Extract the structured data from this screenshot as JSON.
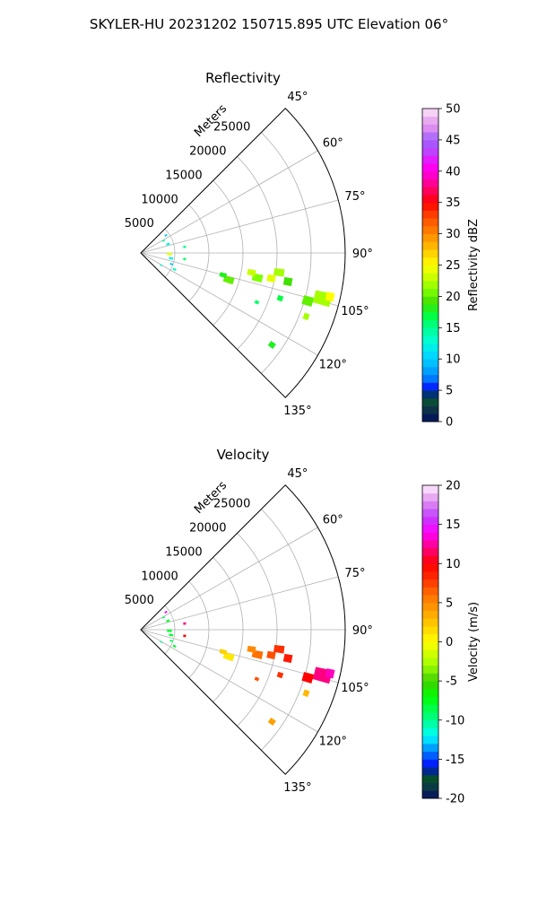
{
  "figure": {
    "suptitle": "SKYLER-HU  20231202  150715.895 UTC Elevation 06°"
  },
  "chart_data": [
    {
      "type": "heatmap",
      "subtype": "polar-sector-ppi",
      "title": "Reflectivity",
      "radial_label": "Meters",
      "radial_ticks": [
        "5000",
        "10000",
        "15000",
        "20000",
        "25000"
      ],
      "radial_tick_values": [
        5000,
        10000,
        15000,
        20000,
        25000
      ],
      "rmax": 30000,
      "angle_ticks": [
        "45°",
        "60°",
        "75°",
        "90°",
        "105°",
        "120°",
        "135°"
      ],
      "angle_tick_values": [
        45,
        60,
        75,
        90,
        105,
        120,
        135
      ],
      "theta_range": [
        45,
        135
      ],
      "grid": true,
      "colorbar": {
        "label": "Reflectivity dBZ",
        "ticks": [
          "0",
          "5",
          "10",
          "15",
          "20",
          "25",
          "30",
          "35",
          "40",
          "45",
          "50"
        ],
        "range": [
          0,
          50
        ],
        "stops": [
          [
            0,
            "#001060"
          ],
          [
            1.5,
            "#0d2a4d"
          ],
          [
            3,
            "#0b4a3a"
          ],
          [
            4,
            "#005020"
          ],
          [
            5,
            "#0000ff"
          ],
          [
            7,
            "#0080ff"
          ],
          [
            9,
            "#00b8ff"
          ],
          [
            11,
            "#00e0ff"
          ],
          [
            13,
            "#00ffd0"
          ],
          [
            15,
            "#00ff90"
          ],
          [
            17,
            "#00ff40"
          ],
          [
            19,
            "#40e000"
          ],
          [
            21,
            "#80ff00"
          ],
          [
            23,
            "#c8ff00"
          ],
          [
            25,
            "#ffff00"
          ],
          [
            27,
            "#ffd000"
          ],
          [
            29,
            "#ffa000"
          ],
          [
            31,
            "#ff7000"
          ],
          [
            33,
            "#ff4000"
          ],
          [
            35,
            "#ff0000"
          ],
          [
            37,
            "#ff0060"
          ],
          [
            39,
            "#ff00c0"
          ],
          [
            41,
            "#ff00ff"
          ],
          [
            43,
            "#c040ff"
          ],
          [
            45,
            "#a060ff"
          ],
          [
            47,
            "#e090f0"
          ],
          [
            49,
            "#f0c0f0"
          ],
          [
            50,
            "#fff0ff"
          ]
        ]
      },
      "echoes": [
        {
          "r": 17500,
          "theta": 102,
          "dr": 1500,
          "dtheta": 3.5,
          "value": 21
        },
        {
          "r": 16500,
          "theta": 100,
          "dr": 1200,
          "dtheta": 3,
          "value": 23
        },
        {
          "r": 20500,
          "theta": 98,
          "dr": 1500,
          "dtheta": 3,
          "value": 22
        },
        {
          "r": 19500,
          "theta": 101,
          "dr": 1200,
          "dtheta": 3,
          "value": 24
        },
        {
          "r": 22000,
          "theta": 101,
          "dr": 1200,
          "dtheta": 3,
          "value": 19
        },
        {
          "r": 13500,
          "theta": 107,
          "dr": 1500,
          "dtheta": 4,
          "value": 20
        },
        {
          "r": 12500,
          "theta": 105,
          "dr": 1000,
          "dtheta": 3,
          "value": 18
        },
        {
          "r": 27500,
          "theta": 104,
          "dr": 2500,
          "dtheta": 4,
          "value": 22
        },
        {
          "r": 28500,
          "theta": 103,
          "dr": 1200,
          "dtheta": 2.5,
          "value": 25
        },
        {
          "r": 25500,
          "theta": 106,
          "dr": 1500,
          "dtheta": 3,
          "value": 20
        },
        {
          "r": 21500,
          "theta": 108,
          "dr": 800,
          "dtheta": 2,
          "value": 17
        },
        {
          "r": 18500,
          "theta": 113,
          "dr": 600,
          "dtheta": 1.5,
          "value": 16
        },
        {
          "r": 26000,
          "theta": 111,
          "dr": 800,
          "dtheta": 2,
          "value": 22
        },
        {
          "r": 23500,
          "theta": 125,
          "dr": 900,
          "dtheta": 2,
          "value": 18
        },
        {
          "r": 4200,
          "theta": 92,
          "dr": 700,
          "dtheta": 5,
          "value": 24
        },
        {
          "r": 4200,
          "theta": 72,
          "dr": 500,
          "dtheta": 4,
          "value": 12
        },
        {
          "r": 3800,
          "theta": 62,
          "dr": 400,
          "dtheta": 3,
          "value": 14
        },
        {
          "r": 4500,
          "theta": 55,
          "dr": 400,
          "dtheta": 3,
          "value": 10
        },
        {
          "r": 4500,
          "theta": 100,
          "dr": 600,
          "dtheta": 4,
          "value": 12
        },
        {
          "r": 4800,
          "theta": 110,
          "dr": 500,
          "dtheta": 3,
          "value": 10
        },
        {
          "r": 5500,
          "theta": 116,
          "dr": 500,
          "dtheta": 3,
          "value": 14
        },
        {
          "r": 3500,
          "theta": 121,
          "dr": 400,
          "dtheta": 3,
          "value": 12
        },
        {
          "r": 6500,
          "theta": 82,
          "dr": 400,
          "dtheta": 3,
          "value": 15
        },
        {
          "r": 6500,
          "theta": 98,
          "dr": 400,
          "dtheta": 3,
          "value": 16
        }
      ]
    },
    {
      "type": "heatmap",
      "subtype": "polar-sector-ppi",
      "title": "Velocity",
      "radial_label": "Meters",
      "radial_ticks": [
        "5000",
        "10000",
        "15000",
        "20000",
        "25000"
      ],
      "radial_tick_values": [
        5000,
        10000,
        15000,
        20000,
        25000
      ],
      "rmax": 30000,
      "angle_ticks": [
        "45°",
        "60°",
        "75°",
        "90°",
        "105°",
        "120°",
        "135°"
      ],
      "angle_tick_values": [
        45,
        60,
        75,
        90,
        105,
        120,
        135
      ],
      "theta_range": [
        45,
        135
      ],
      "grid": true,
      "colorbar": {
        "label": "Velocity (m/s)",
        "ticks": [
          "-20",
          "-15",
          "-10",
          "-5",
          "0",
          "5",
          "10",
          "15",
          "20"
        ],
        "range": [
          -20,
          20
        ],
        "stops": [
          [
            -20,
            "#001060"
          ],
          [
            -19,
            "#0d2a4d"
          ],
          [
            -18,
            "#0b4a3a"
          ],
          [
            -17,
            "#005020"
          ],
          [
            -16,
            "#0000ff"
          ],
          [
            -14,
            "#0080ff"
          ],
          [
            -13,
            "#00c0ff"
          ],
          [
            -12,
            "#00ffff"
          ],
          [
            -11,
            "#00ffc0"
          ],
          [
            -9,
            "#00ff60"
          ],
          [
            -7,
            "#00ff00"
          ],
          [
            -5,
            "#40d000"
          ],
          [
            -3,
            "#a0ff00"
          ],
          [
            -1,
            "#e0ff00"
          ],
          [
            0,
            "#ffff00"
          ],
          [
            2,
            "#ffd000"
          ],
          [
            4,
            "#ffa000"
          ],
          [
            6,
            "#ff7000"
          ],
          [
            8,
            "#ff3000"
          ],
          [
            10,
            "#ff0000"
          ],
          [
            12,
            "#ff0080"
          ],
          [
            14,
            "#ff00ff"
          ],
          [
            16,
            "#c040ff"
          ],
          [
            18,
            "#e090f0"
          ],
          [
            20,
            "#fff0ff"
          ]
        ]
      },
      "echoes": [
        {
          "r": 17500,
          "theta": 102,
          "dr": 1500,
          "dtheta": 3.5,
          "value": 6
        },
        {
          "r": 16500,
          "theta": 100,
          "dr": 1200,
          "dtheta": 3,
          "value": 5
        },
        {
          "r": 20500,
          "theta": 98,
          "dr": 1500,
          "dtheta": 3,
          "value": 8
        },
        {
          "r": 19500,
          "theta": 101,
          "dr": 1200,
          "dtheta": 3,
          "value": 7
        },
        {
          "r": 22000,
          "theta": 101,
          "dr": 1200,
          "dtheta": 3,
          "value": 9
        },
        {
          "r": 13500,
          "theta": 107,
          "dr": 1500,
          "dtheta": 4,
          "value": 1
        },
        {
          "r": 12500,
          "theta": 105,
          "dr": 1000,
          "dtheta": 3,
          "value": 2
        },
        {
          "r": 27500,
          "theta": 104,
          "dr": 2500,
          "dtheta": 4,
          "value": 12
        },
        {
          "r": 28500,
          "theta": 103,
          "dr": 1200,
          "dtheta": 2.5,
          "value": 13
        },
        {
          "r": 25500,
          "theta": 106,
          "dr": 1500,
          "dtheta": 3,
          "value": 10
        },
        {
          "r": 21500,
          "theta": 108,
          "dr": 800,
          "dtheta": 2,
          "value": 8
        },
        {
          "r": 18500,
          "theta": 113,
          "dr": 600,
          "dtheta": 1.5,
          "value": 7
        },
        {
          "r": 26000,
          "theta": 111,
          "dr": 800,
          "dtheta": 2,
          "value": 3
        },
        {
          "r": 23500,
          "theta": 125,
          "dr": 900,
          "dtheta": 2,
          "value": 4
        },
        {
          "r": 4200,
          "theta": 92,
          "dr": 700,
          "dtheta": 5,
          "value": -8
        },
        {
          "r": 4200,
          "theta": 72,
          "dr": 500,
          "dtheta": 4,
          "value": -8
        },
        {
          "r": 3800,
          "theta": 62,
          "dr": 400,
          "dtheta": 3,
          "value": -9
        },
        {
          "r": 4500,
          "theta": 55,
          "dr": 400,
          "dtheta": 3,
          "value": 14
        },
        {
          "r": 4500,
          "theta": 100,
          "dr": 600,
          "dtheta": 4,
          "value": -8
        },
        {
          "r": 4800,
          "theta": 110,
          "dr": 500,
          "dtheta": 3,
          "value": -9
        },
        {
          "r": 5500,
          "theta": 116,
          "dr": 500,
          "dtheta": 3,
          "value": -8
        },
        {
          "r": 3500,
          "theta": 121,
          "dr": 400,
          "dtheta": 3,
          "value": -10
        },
        {
          "r": 6500,
          "theta": 82,
          "dr": 400,
          "dtheta": 3,
          "value": 12
        },
        {
          "r": 6500,
          "theta": 98,
          "dr": 400,
          "dtheta": 3,
          "value": 10
        }
      ]
    }
  ]
}
